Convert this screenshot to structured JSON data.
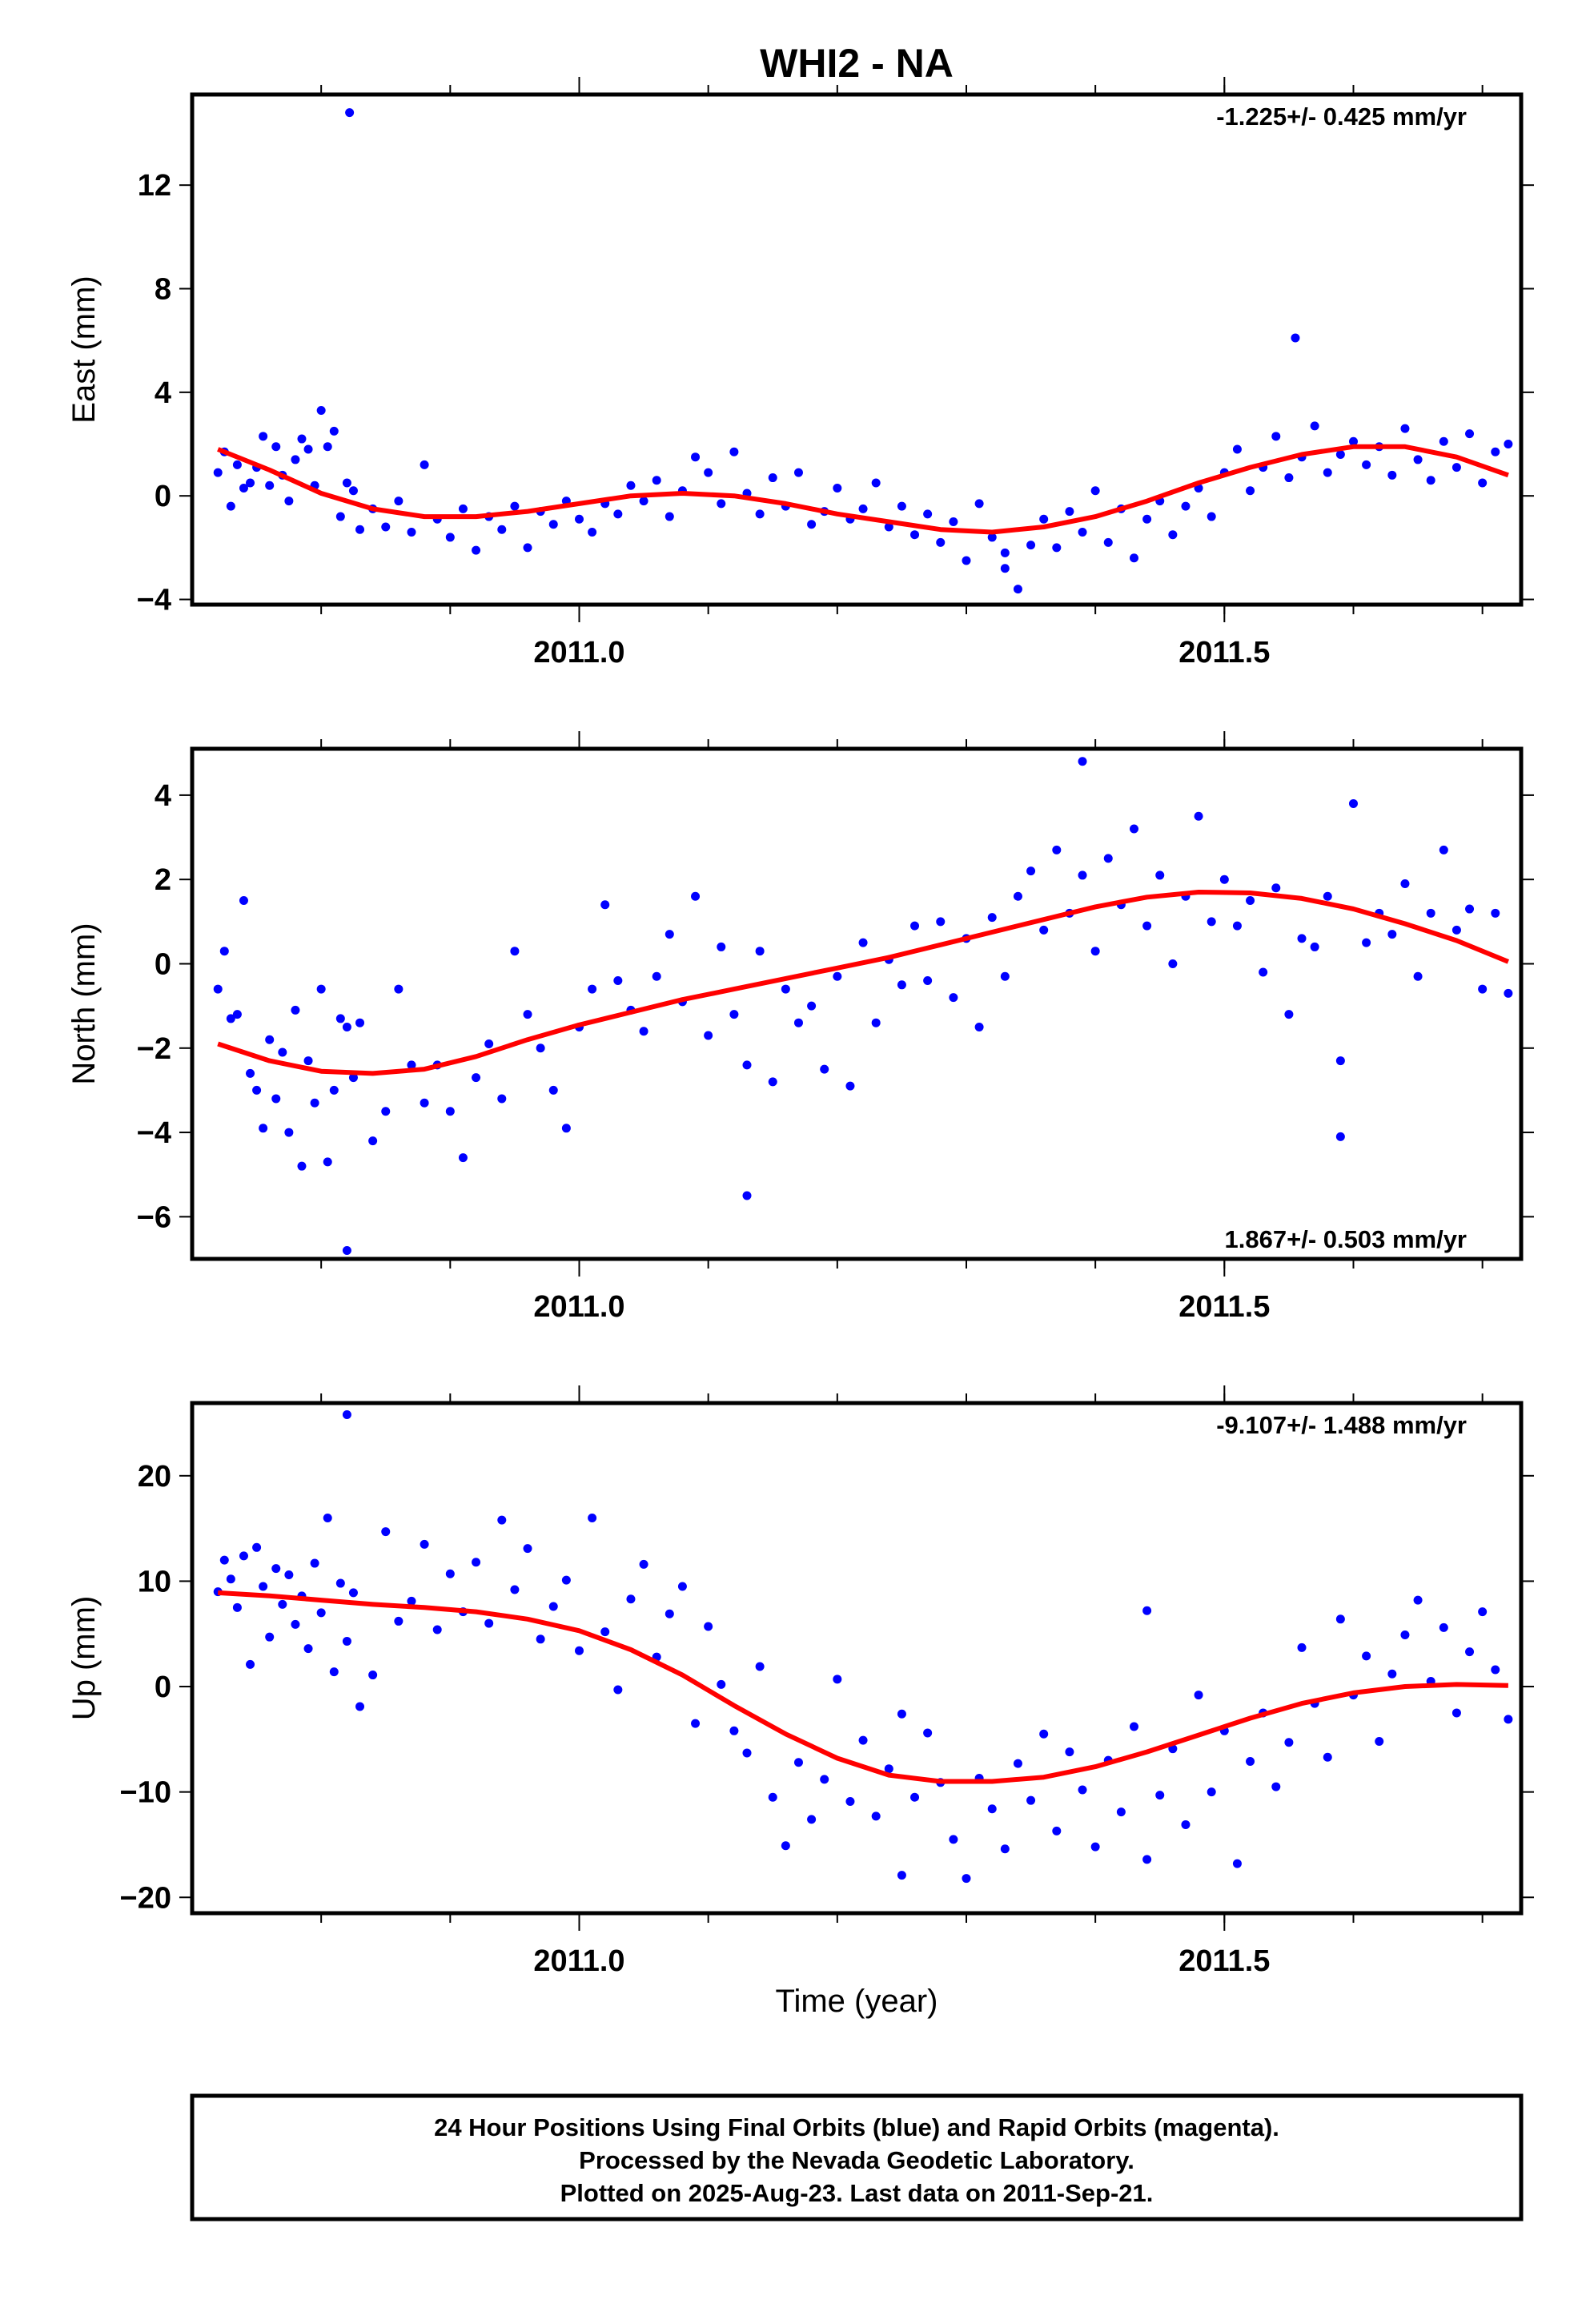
{
  "title": "WHI2 - NA",
  "xlabel": "Time (year)",
  "footer": {
    "line1": "24 Hour Positions Using Final Orbits (blue) and Rapid Orbits (magenta).",
    "line2": "Processed by the Nevada Geodetic Laboratory.",
    "line3": "Plotted on 2025-Aug-23. Last data on 2011-Sep-21."
  },
  "colors": {
    "points": "#0000ff",
    "fit": "#ff0000",
    "frame": "#000000"
  },
  "chart_data": [
    {
      "type": "scatter",
      "ylabel": "East (mm)",
      "rate_label": "-1.225+/- 0.425 mm/yr",
      "rate_position": "top-right",
      "xlim": [
        2010.7,
        2011.73
      ],
      "ylim": [
        -4.2,
        15.5
      ],
      "xticks": [
        2011.0,
        2011.5
      ],
      "xtick_labels": [
        "2011.0",
        "2011.5"
      ],
      "yticks": [
        -4,
        0,
        4,
        8,
        12
      ],
      "ytick_labels": [
        "−4",
        "0",
        "4",
        "8",
        "12"
      ],
      "series": [
        {
          "style": "points",
          "x": [
            2010.72,
            2010.725,
            2010.73,
            2010.735,
            2010.74,
            2010.745,
            2010.75,
            2010.755,
            2010.76,
            2010.765,
            2010.77,
            2010.775,
            2010.78,
            2010.785,
            2010.79,
            2010.795,
            2010.8,
            2010.805,
            2010.81,
            2010.815,
            2010.82,
            2010.825,
            2010.83,
            2010.84,
            2010.85,
            2010.86,
            2010.87,
            2010.88,
            2010.89,
            2010.9,
            2010.91,
            2010.92,
            2010.93,
            2010.94,
            2010.95,
            2010.96,
            2010.97,
            2010.98,
            2010.99,
            2011.0,
            2011.01,
            2011.02,
            2011.03,
            2011.04,
            2011.05,
            2011.06,
            2011.07,
            2011.08,
            2011.09,
            2011.1,
            2011.11,
            2011.12,
            2011.13,
            2011.14,
            2011.15,
            2011.16,
            2011.17,
            2011.18,
            2011.19,
            2011.2,
            2011.21,
            2011.22,
            2011.23,
            2011.24,
            2011.25,
            2011.26,
            2011.27,
            2011.28,
            2011.29,
            2011.3,
            2011.31,
            2011.32,
            2011.33,
            2011.34,
            2011.35,
            2011.36,
            2011.37,
            2011.38,
            2011.39,
            2011.4,
            2011.41,
            2011.42,
            2011.43,
            2011.44,
            2011.45,
            2011.46,
            2011.47,
            2011.48,
            2011.49,
            2011.5,
            2011.51,
            2011.52,
            2011.53,
            2011.54,
            2011.55,
            2011.56,
            2011.57,
            2011.58,
            2011.59,
            2011.6,
            2011.61,
            2011.62,
            2011.63,
            2011.64,
            2011.65,
            2011.66,
            2011.67,
            2011.68,
            2011.69,
            2011.7,
            2011.71,
            2011.72,
            2010.822,
            2011.555,
            2011.33
          ],
          "y": [
            0.9,
            1.7,
            -0.4,
            1.2,
            0.3,
            0.5,
            1.1,
            2.3,
            0.4,
            1.9,
            0.8,
            -0.2,
            1.4,
            2.2,
            1.8,
            0.4,
            3.3,
            1.9,
            2.5,
            -0.8,
            0.5,
            0.2,
            -1.3,
            -0.5,
            -1.2,
            -0.2,
            -1.4,
            1.2,
            -0.9,
            -1.6,
            -0.5,
            -2.1,
            -0.8,
            -1.3,
            -0.4,
            -2.0,
            -0.6,
            -1.1,
            -0.2,
            -0.9,
            -1.4,
            -0.3,
            -0.7,
            0.4,
            -0.2,
            0.6,
            -0.8,
            0.2,
            1.5,
            0.9,
            -0.3,
            1.7,
            0.1,
            -0.7,
            0.7,
            -0.4,
            0.9,
            -1.1,
            -0.6,
            0.3,
            -0.9,
            -0.5,
            0.5,
            -1.2,
            -0.4,
            -1.5,
            -0.7,
            -1.8,
            -1.0,
            -2.5,
            -0.3,
            -1.6,
            -2.2,
            -3.6,
            -1.9,
            -0.9,
            -2.0,
            -0.6,
            -1.4,
            0.2,
            -1.8,
            -0.5,
            -2.4,
            -0.9,
            -0.2,
            -1.5,
            -0.4,
            0.3,
            -0.8,
            0.9,
            1.8,
            0.2,
            1.1,
            2.3,
            0.7,
            1.5,
            2.7,
            0.9,
            1.6,
            2.1,
            1.2,
            1.9,
            0.8,
            2.6,
            1.4,
            0.6,
            2.1,
            1.1,
            2.4,
            0.5,
            1.7,
            2.0,
            14.8,
            6.1,
            -2.8
          ]
        },
        {
          "style": "line",
          "x": [
            2010.72,
            2010.76,
            2010.8,
            2010.84,
            2010.88,
            2010.92,
            2010.96,
            2011.0,
            2011.04,
            2011.08,
            2011.12,
            2011.16,
            2011.2,
            2011.24,
            2011.28,
            2011.32,
            2011.36,
            2011.4,
            2011.44,
            2011.48,
            2011.52,
            2011.56,
            2011.6,
            2011.64,
            2011.68,
            2011.72
          ],
          "y": [
            1.8,
            1.0,
            0.1,
            -0.5,
            -0.8,
            -0.8,
            -0.6,
            -0.3,
            0.0,
            0.1,
            0.0,
            -0.3,
            -0.7,
            -1.0,
            -1.3,
            -1.4,
            -1.2,
            -0.8,
            -0.2,
            0.5,
            1.1,
            1.6,
            1.9,
            1.9,
            1.5,
            0.8
          ]
        }
      ]
    },
    {
      "type": "scatter",
      "ylabel": "North (mm)",
      "rate_label": "1.867+/- 0.503 mm/yr",
      "rate_position": "bottom-right",
      "xlim": [
        2010.7,
        2011.73
      ],
      "ylim": [
        -7.0,
        5.1
      ],
      "xticks": [
        2011.0,
        2011.5
      ],
      "xtick_labels": [
        "2011.0",
        "2011.5"
      ],
      "yticks": [
        -6,
        -4,
        -2,
        0,
        2,
        4
      ],
      "ytick_labels": [
        "−6",
        "−4",
        "−2",
        "0",
        "2",
        "4"
      ],
      "series": [
        {
          "style": "points",
          "x": [
            2010.72,
            2010.725,
            2010.73,
            2010.735,
            2010.74,
            2010.745,
            2010.75,
            2010.755,
            2010.76,
            2010.765,
            2010.77,
            2010.775,
            2010.78,
            2010.785,
            2010.79,
            2010.795,
            2010.8,
            2010.805,
            2010.81,
            2010.815,
            2010.82,
            2010.825,
            2010.83,
            2010.84,
            2010.85,
            2010.86,
            2010.87,
            2010.88,
            2010.89,
            2010.9,
            2010.91,
            2010.92,
            2010.93,
            2010.94,
            2010.95,
            2010.96,
            2010.97,
            2010.98,
            2010.99,
            2011.0,
            2011.01,
            2011.02,
            2011.03,
            2011.04,
            2011.05,
            2011.06,
            2011.07,
            2011.08,
            2011.09,
            2011.1,
            2011.11,
            2011.12,
            2011.13,
            2011.14,
            2011.15,
            2011.16,
            2011.17,
            2011.18,
            2011.19,
            2011.2,
            2011.21,
            2011.22,
            2011.23,
            2011.24,
            2011.25,
            2011.26,
            2011.27,
            2011.28,
            2011.29,
            2011.3,
            2011.31,
            2011.32,
            2011.33,
            2011.34,
            2011.35,
            2011.36,
            2011.37,
            2011.38,
            2011.39,
            2011.4,
            2011.41,
            2011.42,
            2011.43,
            2011.44,
            2011.45,
            2011.46,
            2011.47,
            2011.48,
            2011.49,
            2011.5,
            2011.51,
            2011.52,
            2011.53,
            2011.54,
            2011.55,
            2011.56,
            2011.57,
            2011.58,
            2011.59,
            2011.6,
            2011.61,
            2011.62,
            2011.63,
            2011.64,
            2011.65,
            2011.66,
            2011.67,
            2011.68,
            2011.69,
            2011.7,
            2011.71,
            2011.72,
            2010.82,
            2011.13,
            2011.39,
            2011.59
          ],
          "y": [
            -0.6,
            0.3,
            -1.3,
            -1.2,
            1.5,
            -2.6,
            -3.0,
            -3.9,
            -1.8,
            -3.2,
            -2.1,
            -4.0,
            -1.1,
            -4.8,
            -2.3,
            -3.3,
            -0.6,
            -4.7,
            -3.0,
            -1.3,
            -1.5,
            -2.7,
            -1.4,
            -4.2,
            -3.5,
            -0.6,
            -2.4,
            -3.3,
            -2.4,
            -3.5,
            -4.6,
            -2.7,
            -1.9,
            -3.2,
            0.3,
            -1.2,
            -2.0,
            -3.0,
            -3.9,
            -1.5,
            -0.6,
            1.4,
            -0.4,
            -1.1,
            -1.6,
            -0.3,
            0.7,
            -0.9,
            1.6,
            -1.7,
            0.4,
            -1.2,
            -2.4,
            0.3,
            -2.8,
            -0.6,
            -1.4,
            -1.0,
            -2.5,
            -0.3,
            -2.9,
            0.5,
            -1.4,
            0.1,
            -0.5,
            0.9,
            -0.4,
            1.0,
            -0.8,
            0.6,
            -1.5,
            1.1,
            -0.3,
            1.6,
            2.2,
            0.8,
            2.7,
            1.2,
            2.1,
            0.3,
            2.5,
            1.4,
            3.2,
            0.9,
            2.1,
            0.0,
            1.6,
            3.5,
            1.0,
            2.0,
            0.9,
            1.5,
            -0.2,
            1.8,
            -1.2,
            0.6,
            0.4,
            1.6,
            -4.1,
            3.8,
            0.5,
            1.2,
            0.7,
            1.9,
            -0.3,
            1.2,
            2.7,
            0.8,
            1.3,
            -0.6,
            1.2,
            -0.7,
            -6.8,
            -5.5,
            4.8,
            -2.3
          ]
        },
        {
          "style": "line",
          "x": [
            2010.72,
            2010.76,
            2010.8,
            2010.84,
            2010.88,
            2010.92,
            2010.96,
            2011.0,
            2011.04,
            2011.08,
            2011.12,
            2011.16,
            2011.2,
            2011.24,
            2011.28,
            2011.32,
            2011.36,
            2011.4,
            2011.44,
            2011.48,
            2011.52,
            2011.56,
            2011.6,
            2011.64,
            2011.68,
            2011.72
          ],
          "y": [
            -1.9,
            -2.3,
            -2.55,
            -2.6,
            -2.5,
            -2.2,
            -1.8,
            -1.45,
            -1.15,
            -0.85,
            -0.6,
            -0.35,
            -0.1,
            0.15,
            0.45,
            0.75,
            1.05,
            1.35,
            1.58,
            1.7,
            1.68,
            1.55,
            1.3,
            0.95,
            0.55,
            0.05
          ]
        }
      ]
    },
    {
      "type": "scatter",
      "ylabel": "Up (mm)",
      "rate_label": "-9.107+/- 1.488 mm/yr",
      "rate_position": "top-right",
      "xlim": [
        2010.7,
        2011.73
      ],
      "ylim": [
        -21.5,
        26.9
      ],
      "xticks": [
        2011.0,
        2011.5
      ],
      "xtick_labels": [
        "2011.0",
        "2011.5"
      ],
      "yticks": [
        -20,
        -10,
        0,
        10,
        20
      ],
      "ytick_labels": [
        "−20",
        "−10",
        "0",
        "10",
        "20"
      ],
      "series": [
        {
          "style": "points",
          "x": [
            2010.72,
            2010.725,
            2010.73,
            2010.735,
            2010.74,
            2010.745,
            2010.75,
            2010.755,
            2010.76,
            2010.765,
            2010.77,
            2010.775,
            2010.78,
            2010.785,
            2010.79,
            2010.795,
            2010.8,
            2010.805,
            2010.81,
            2010.815,
            2010.82,
            2010.825,
            2010.83,
            2010.84,
            2010.85,
            2010.86,
            2010.87,
            2010.88,
            2010.89,
            2010.9,
            2010.91,
            2010.92,
            2010.93,
            2010.94,
            2010.95,
            2010.96,
            2010.97,
            2010.98,
            2010.99,
            2011.0,
            2011.01,
            2011.02,
            2011.03,
            2011.04,
            2011.05,
            2011.06,
            2011.07,
            2011.08,
            2011.09,
            2011.1,
            2011.11,
            2011.12,
            2011.13,
            2011.14,
            2011.15,
            2011.16,
            2011.17,
            2011.18,
            2011.19,
            2011.2,
            2011.21,
            2011.22,
            2011.23,
            2011.24,
            2011.25,
            2011.26,
            2011.27,
            2011.28,
            2011.29,
            2011.3,
            2011.31,
            2011.32,
            2011.33,
            2011.34,
            2011.35,
            2011.36,
            2011.37,
            2011.38,
            2011.39,
            2011.4,
            2011.41,
            2011.42,
            2011.43,
            2011.44,
            2011.45,
            2011.46,
            2011.47,
            2011.48,
            2011.49,
            2011.5,
            2011.51,
            2011.52,
            2011.53,
            2011.54,
            2011.55,
            2011.56,
            2011.57,
            2011.58,
            2011.59,
            2011.6,
            2011.61,
            2011.62,
            2011.63,
            2011.64,
            2011.65,
            2011.66,
            2011.67,
            2011.68,
            2011.69,
            2011.7,
            2011.71,
            2011.72,
            2010.82,
            2011.44,
            2011.25
          ],
          "y": [
            9.0,
            12.0,
            10.2,
            7.5,
            12.4,
            2.1,
            13.2,
            9.5,
            4.7,
            11.2,
            7.8,
            10.6,
            5.9,
            8.6,
            3.6,
            11.7,
            7.0,
            16.0,
            1.4,
            9.8,
            4.3,
            8.9,
            -1.9,
            1.1,
            14.7,
            6.2,
            8.1,
            13.5,
            5.4,
            10.7,
            7.1,
            11.8,
            6.0,
            15.8,
            9.2,
            13.1,
            4.5,
            7.6,
            10.1,
            3.4,
            16.0,
            5.2,
            -0.3,
            8.3,
            11.6,
            2.8,
            6.9,
            9.5,
            -3.5,
            5.7,
            0.2,
            -4.2,
            -6.3,
            1.9,
            -10.5,
            -15.1,
            -7.2,
            -12.6,
            -8.8,
            0.7,
            -10.9,
            -5.1,
            -12.3,
            -7.8,
            -2.6,
            -10.5,
            -4.4,
            -9.1,
            -14.5,
            -18.2,
            -8.7,
            -11.6,
            -15.4,
            -7.3,
            -10.8,
            -4.5,
            -13.7,
            -6.2,
            -9.8,
            -15.2,
            -7.0,
            -11.9,
            -3.8,
            -16.4,
            -10.3,
            -5.9,
            -13.1,
            -0.8,
            -10.0,
            -4.2,
            -16.8,
            -7.1,
            -2.5,
            -9.5,
            -5.3,
            3.7,
            -1.6,
            -6.7,
            6.4,
            -0.8,
            2.9,
            -5.2,
            1.2,
            4.9,
            8.2,
            0.5,
            5.6,
            -2.5,
            3.3,
            7.1,
            1.6,
            -3.1,
            25.8,
            7.2,
            -17.9
          ]
        },
        {
          "style": "line",
          "x": [
            2010.72,
            2010.76,
            2010.8,
            2010.84,
            2010.88,
            2010.92,
            2010.96,
            2011.0,
            2011.04,
            2011.08,
            2011.12,
            2011.16,
            2011.2,
            2011.24,
            2011.28,
            2011.32,
            2011.36,
            2011.4,
            2011.44,
            2011.48,
            2011.52,
            2011.56,
            2011.6,
            2011.64,
            2011.68,
            2011.72
          ],
          "y": [
            8.9,
            8.6,
            8.2,
            7.8,
            7.5,
            7.1,
            6.4,
            5.3,
            3.5,
            1.1,
            -1.8,
            -4.5,
            -6.8,
            -8.4,
            -9.0,
            -9.0,
            -8.6,
            -7.6,
            -6.2,
            -4.6,
            -3.0,
            -1.6,
            -0.6,
            0.0,
            0.2,
            0.1
          ]
        }
      ]
    }
  ]
}
